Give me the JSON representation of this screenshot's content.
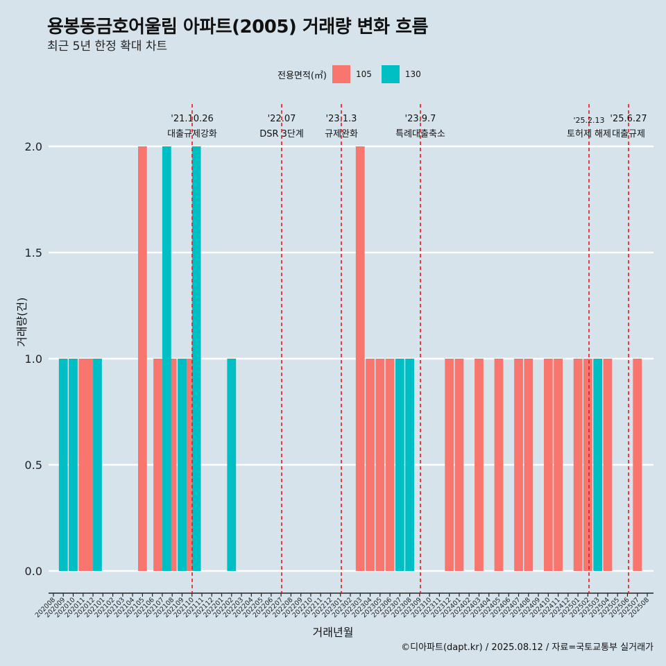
{
  "title": "용봉동금호어울림 아파트(2005) 거래량 변화 흐름",
  "subtitle": "최근 5년 한정 확대 차트",
  "caption": "©디아파트(dapt.kr) / 2025.08.12 / 자료=국토교통부 실거래가",
  "colors": {
    "background": "#d6e3ea",
    "s105": "#f8766d",
    "s130": "#00bfc4",
    "event_line": "#e8181b",
    "grid": "#ffffff"
  },
  "chart_data": {
    "type": "bar",
    "title": "용봉동금호어울림 아파트(2005) 거래량 변화 흐름",
    "subtitle": "최근 5년 한정 확대 차트",
    "xlabel": "거래년월",
    "ylabel": "거래량(건)",
    "ylim": [
      0,
      2
    ],
    "y_ticks": [
      "0.0",
      "0.5",
      "1.0",
      "1.5",
      "2.0"
    ],
    "grid": true,
    "legend": {
      "title": "전용면적(㎡)",
      "position": "top",
      "entries": [
        "105",
        "130"
      ]
    },
    "categories": [
      "202008",
      "202009",
      "202010",
      "202011",
      "202012",
      "202101",
      "202102",
      "202103",
      "202104",
      "202105",
      "202106",
      "202107",
      "202108",
      "202109",
      "202110",
      "202111",
      "202112",
      "202201",
      "202202",
      "202203",
      "202204",
      "202205",
      "202206",
      "202207",
      "202208",
      "202209",
      "202210",
      "202211",
      "202212",
      "202301",
      "202302",
      "202303",
      "202304",
      "202305",
      "202306",
      "202307",
      "202308",
      "202309",
      "202310",
      "202311",
      "202312",
      "202401",
      "202402",
      "202403",
      "202404",
      "202405",
      "202406",
      "202407",
      "202408",
      "202409",
      "202410",
      "202411",
      "202412",
      "202501",
      "202502",
      "202503",
      "202504",
      "202505",
      "202506",
      "202507",
      "202508"
    ],
    "series": [
      {
        "name": "105",
        "color": "#f8766d",
        "values": [
          0,
          0,
          0,
          1,
          1,
          0,
          0,
          0,
          0,
          2,
          0,
          1,
          1,
          0,
          1,
          0,
          0,
          0,
          0,
          0,
          0,
          0,
          0,
          0,
          0,
          0,
          0,
          0,
          0,
          0,
          0,
          2,
          1,
          1,
          1,
          0,
          0,
          0,
          0,
          0,
          1,
          1,
          0,
          1,
          0,
          1,
          0,
          1,
          1,
          0,
          1,
          1,
          0,
          1,
          1,
          0,
          1,
          0,
          0,
          1,
          0
        ]
      },
      {
        "name": "130",
        "color": "#00bfc4",
        "values": [
          0,
          1,
          1,
          0,
          1,
          0,
          0,
          0,
          0,
          0,
          0,
          2,
          0,
          1,
          2,
          0,
          0,
          0,
          1,
          0,
          0,
          0,
          0,
          0,
          0,
          0,
          0,
          0,
          0,
          0,
          0,
          0,
          0,
          0,
          0,
          1,
          1,
          0,
          0,
          0,
          0,
          0,
          0,
          0,
          0,
          0,
          0,
          0,
          0,
          0,
          0,
          0,
          0,
          0,
          0,
          1,
          0,
          0,
          0,
          0,
          0
        ]
      }
    ],
    "annotations": [
      {
        "date": "202110",
        "label1": "'21.10.26",
        "label2": "대출규제강화"
      },
      {
        "date": "202207",
        "label1": "'22.07",
        "label2": "DSR 3단계"
      },
      {
        "date": "202301",
        "label1": "'23.1.3",
        "label2": "규제완화"
      },
      {
        "date": "202309",
        "label1": "'23.9.7",
        "label2": "특례대출축소"
      },
      {
        "date": "202502",
        "label1": "'25.2.13",
        "label2": "토허제 해제"
      },
      {
        "date": "202506",
        "label1": "'25.6.27",
        "label2": "대출규제"
      }
    ]
  }
}
